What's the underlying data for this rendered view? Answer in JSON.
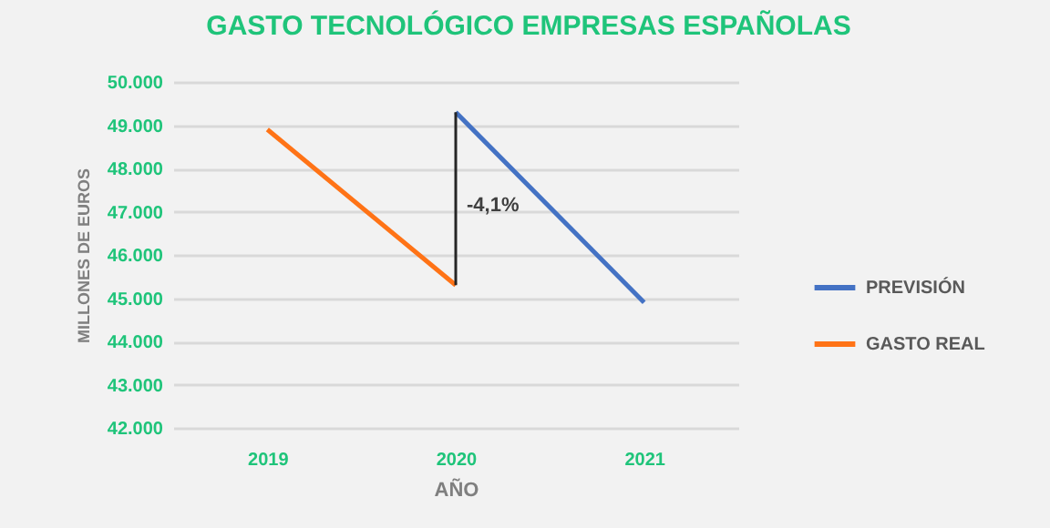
{
  "chart_data": {
    "type": "line",
    "title": "GASTO TECNOLÓGICO EMPRESAS ESPAÑOLAS",
    "xlabel": "AÑO",
    "ylabel": "MILLONES DE EUROS",
    "categories": [
      "2019",
      "2020",
      "2021"
    ],
    "series": [
      {
        "name": "PREVISIÓN",
        "color": "#4472c4",
        "values": [
          null,
          49300,
          44900
        ]
      },
      {
        "name": "GASTO REAL",
        "color": "#ff7316",
        "values": [
          48900,
          45300,
          null
        ]
      }
    ],
    "ylim": [
      42000,
      50000
    ],
    "yticks": [
      {
        "value": 42000,
        "label": "42.000"
      },
      {
        "value": 43000,
        "label": "43.000"
      },
      {
        "value": 44000,
        "label": "44.000"
      },
      {
        "value": 45000,
        "label": "45.000"
      },
      {
        "value": 46000,
        "label": "46.000"
      },
      {
        "value": 47000,
        "label": "47.000"
      },
      {
        "value": 48000,
        "label": "48.000"
      },
      {
        "value": 49000,
        "label": "49.000"
      },
      {
        "value": 50000,
        "label": "50.000"
      }
    ],
    "grid": "y",
    "legend": "right",
    "annotations": [
      "-4,1%"
    ]
  }
}
